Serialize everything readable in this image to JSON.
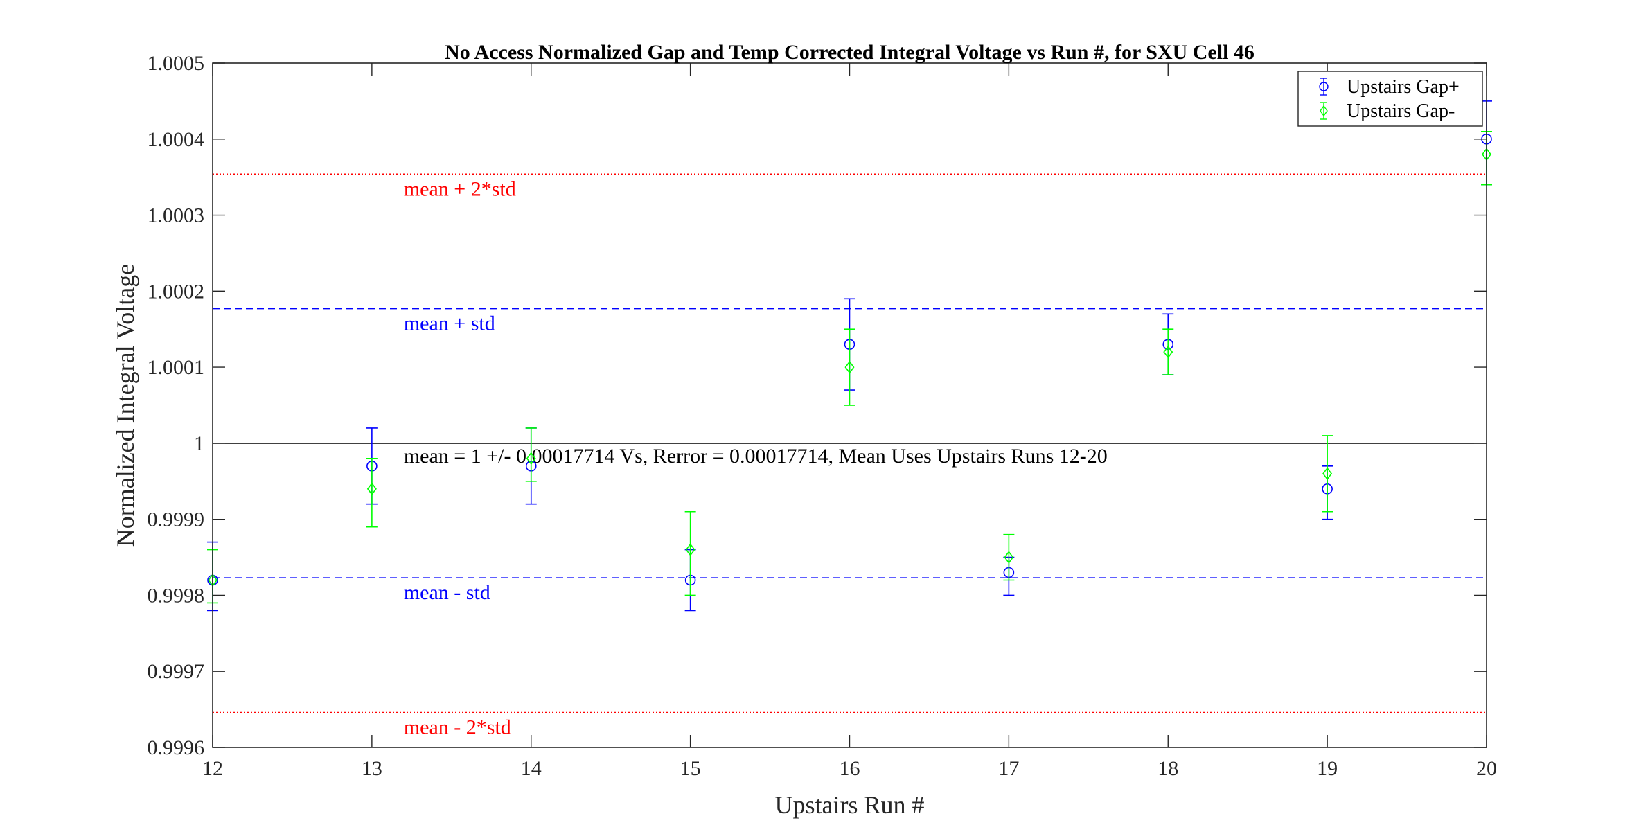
{
  "chart_data": {
    "type": "scatter",
    "title": "No Access Normalized Gap and Temp Corrected Integral Voltage vs Run #, for SXU Cell 46",
    "xlabel": "Upstairs Run #",
    "ylabel": "Normalized Integral Voltage",
    "xlim": [
      12,
      20
    ],
    "ylim": [
      0.9996,
      1.0005
    ],
    "xticks": [
      "12",
      "13",
      "14",
      "15",
      "16",
      "17",
      "18",
      "19",
      "20"
    ],
    "yticks": [
      "0.9996",
      "0.9997",
      "0.9998",
      "0.9999",
      "1",
      "1.0001",
      "1.0002",
      "1.0003",
      "1.0004",
      "1.0005"
    ],
    "grid": false,
    "legend_position": "top-right",
    "series": [
      {
        "name": "Upstairs Gap+",
        "color": "#0000ff",
        "marker": "circle",
        "x": [
          12,
          13,
          14,
          15,
          16,
          17,
          18,
          19,
          20
        ],
        "y": [
          0.99982,
          0.99997,
          0.99997,
          0.99982,
          1.00013,
          0.99983,
          1.00013,
          0.99994,
          1.0004
        ],
        "err_low": [
          0.99978,
          0.99992,
          0.99992,
          0.99978,
          1.00007,
          0.9998,
          1.00009,
          0.9999,
          1.00034
        ],
        "err_high": [
          0.99987,
          1.00002,
          1.00002,
          0.99986,
          1.00019,
          0.99985,
          1.00017,
          0.99997,
          1.00045
        ]
      },
      {
        "name": "Upstairs Gap-",
        "color": "#00ff00",
        "marker": "diamond",
        "x": [
          12,
          13,
          14,
          15,
          16,
          17,
          18,
          19,
          20
        ],
        "y": [
          0.99982,
          0.99994,
          0.99998,
          0.99986,
          1.0001,
          0.99985,
          1.00012,
          0.99996,
          1.00038
        ],
        "err_low": [
          0.99979,
          0.99989,
          0.99995,
          0.9998,
          1.00005,
          0.99982,
          1.00009,
          0.99991,
          1.00034
        ],
        "err_high": [
          0.99986,
          0.99998,
          1.00002,
          0.99991,
          1.00015,
          0.99988,
          1.00015,
          1.00001,
          1.00041
        ]
      }
    ],
    "reference_lines": [
      {
        "label": "mean + 2*std",
        "y": 1.000354,
        "color": "#ff0000",
        "style": "dotted"
      },
      {
        "label": "mean + std",
        "y": 1.000177,
        "color": "#0000ff",
        "style": "dashed"
      },
      {
        "label": "",
        "y": 1.0,
        "color": "#000000",
        "style": "solid"
      },
      {
        "label": "mean - std",
        "y": 0.999823,
        "color": "#0000ff",
        "style": "dashed"
      },
      {
        "label": "mean - 2*std",
        "y": 0.999646,
        "color": "#ff0000",
        "style": "dotted"
      }
    ],
    "annotation": "mean = 1 +/- 0.00017714 Vs, Rerror = 0.00017714, Mean Uses Upstairs Runs 12-20"
  }
}
